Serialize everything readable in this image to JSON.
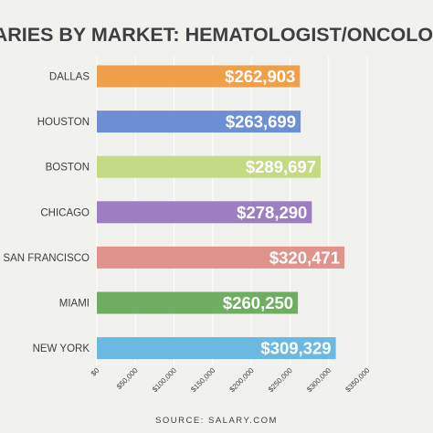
{
  "chart_data": {
    "type": "bar",
    "orientation": "horizontal",
    "title": "SALARIES BY MARKET: HEMATOLOGIST/ONCOLOGIST",
    "categories": [
      "DALLAS",
      "HOUSTON",
      "BOSTON",
      "CHICAGO",
      "SAN FRANCISCO",
      "MIAMI",
      "NEW YORK"
    ],
    "values": [
      262903,
      263699,
      289697,
      278290,
      320471,
      260250,
      309329
    ],
    "value_labels": [
      "$262,903",
      "$263,699",
      "$289,697",
      "$278,290",
      "$320,471",
      "$260,250",
      "$309,329"
    ],
    "bar_colors": [
      "#f0a04b",
      "#6e8fd3",
      "#c5da84",
      "#9b7fc2",
      "#e0938d",
      "#6fae62",
      "#6bb9e0"
    ],
    "xlim": [
      0,
      350000
    ],
    "xticks": [
      0,
      50000,
      100000,
      150000,
      200000,
      250000,
      300000,
      350000
    ],
    "xtick_labels": [
      "$0",
      "$50,000",
      "$100,000",
      "$150,000",
      "$200,000",
      "$250,000",
      "$300,000",
      "$350,000"
    ],
    "grid": true,
    "legend": "none",
    "source": "SOURCE: SALARY.COM"
  }
}
